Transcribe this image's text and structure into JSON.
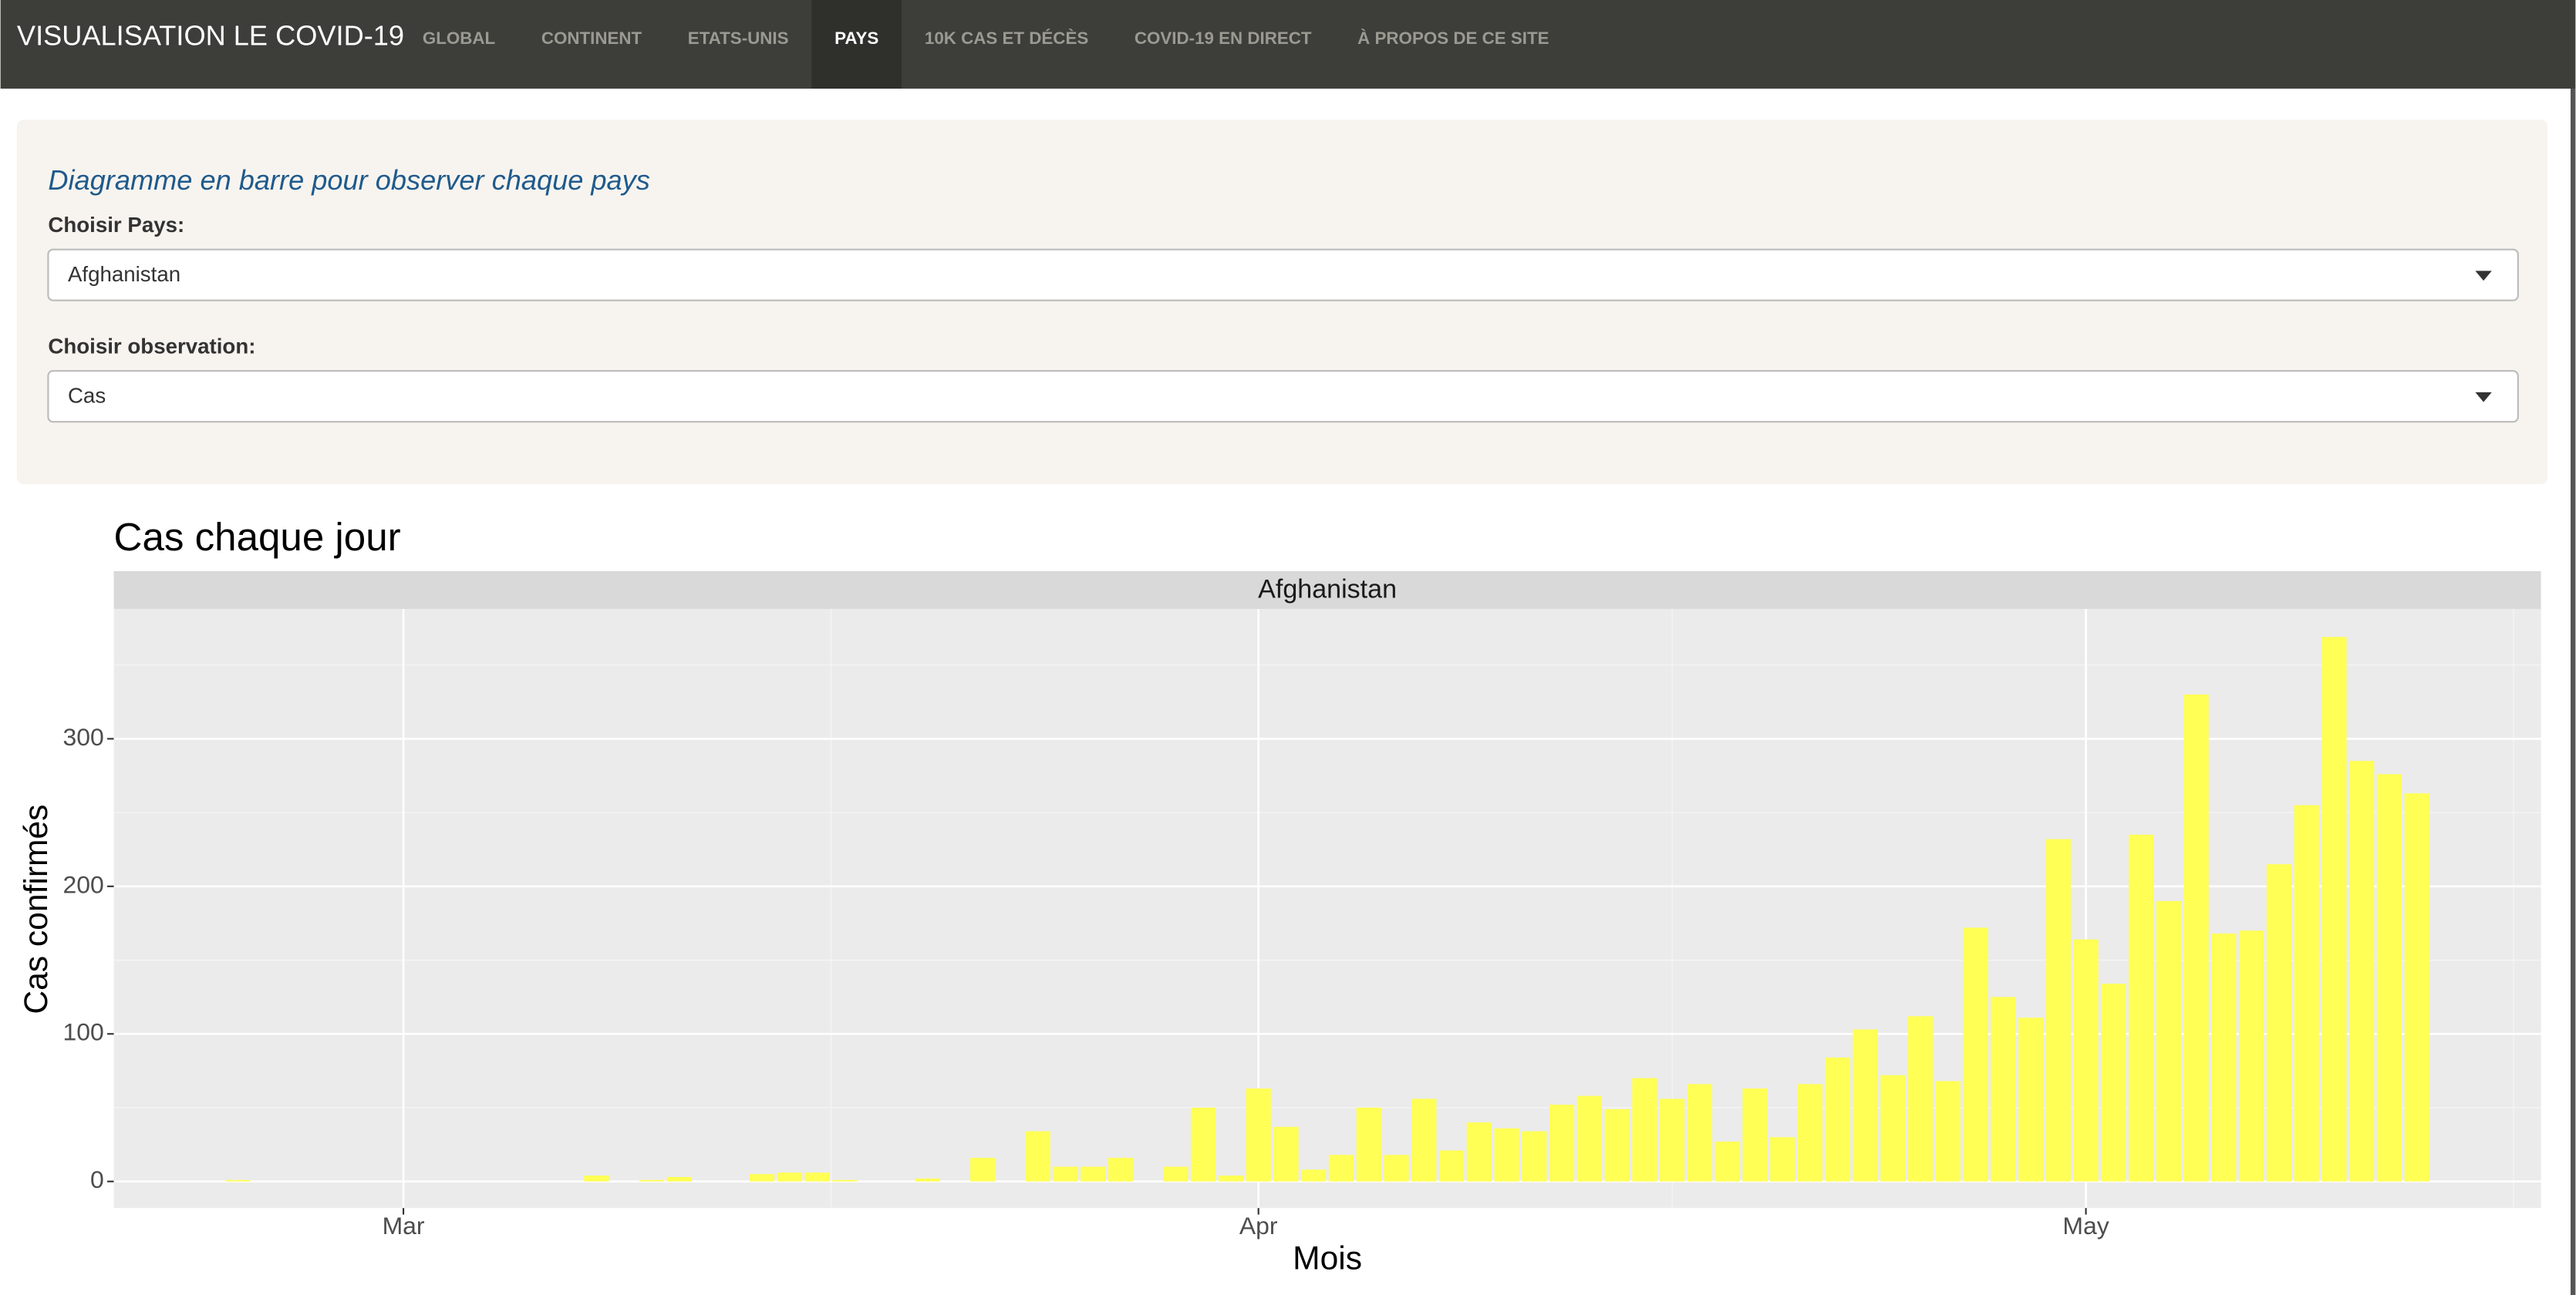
{
  "nav": {
    "brand": "VISUALISATION LE COVID-19",
    "items": [
      "GLOBAL",
      "CONTINENT",
      "ETATS-UNIS",
      "PAYS",
      "10K CAS ET DÉCÈS",
      "COVID-19 EN DIRECT",
      "À PROPOS DE CE SITE"
    ],
    "active": 3
  },
  "form": {
    "heading": "Diagramme en barre pour observer chaque pays",
    "fields": [
      {
        "label": "Choisir Pays:",
        "value": "Afghanistan"
      },
      {
        "label": "Choisir observation:",
        "value": "Cas"
      }
    ]
  },
  "chart_data": {
    "type": "bar",
    "title": "Cas chaque jour",
    "strip": "Afghanistan",
    "xlabel": "Mois",
    "ylabel": "Cas confirmés",
    "x": [
      -6,
      7,
      9,
      10,
      13,
      14,
      15,
      16,
      19,
      21,
      23,
      24,
      25,
      26,
      28,
      29,
      30,
      31,
      32,
      33,
      34,
      35,
      36,
      37,
      38,
      39,
      40,
      41,
      42,
      43,
      44,
      45,
      46,
      47,
      48,
      49,
      50,
      51,
      52,
      53,
      54,
      55,
      56,
      57,
      58,
      59,
      60,
      61,
      62,
      63,
      64,
      65,
      66,
      67,
      68,
      69,
      70,
      71,
      72,
      73
    ],
    "values": [
      1,
      4,
      1,
      3,
      5,
      6,
      6,
      1,
      2,
      16,
      34,
      10,
      10,
      16,
      10,
      50,
      4,
      63,
      37,
      8,
      18,
      50,
      18,
      56,
      21,
      40,
      36,
      34,
      52,
      58,
      49,
      70,
      56,
      66,
      27,
      63,
      30,
      66,
      84,
      103,
      72,
      112,
      68,
      172,
      125,
      111,
      232,
      164,
      134,
      235,
      190,
      330,
      168,
      170,
      215,
      255,
      369,
      285,
      276,
      263
    ],
    "color": "#ffff55",
    "xlim": [
      -10.5,
      77.5
    ],
    "xticks": [
      {
        "value": 0,
        "label": "Mar"
      },
      {
        "value": 31,
        "label": "Apr"
      },
      {
        "value": 61,
        "label": "May"
      }
    ],
    "x_minor_ticks": [
      15.5,
      46,
      76.5
    ],
    "ylim": [
      -18,
      388
    ],
    "yticks": [
      0,
      100,
      200,
      300
    ],
    "y_minor_ticks": [
      50,
      150,
      250,
      350
    ],
    "grid": true
  }
}
